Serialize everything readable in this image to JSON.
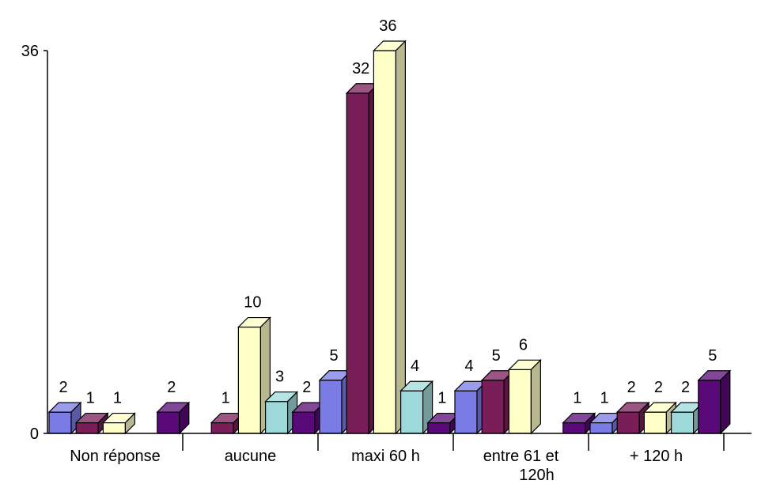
{
  "chart_data": {
    "type": "bar",
    "style": "3d-clustered",
    "categories": [
      "Non réponse",
      "aucune",
      "maxi 60 h",
      "entre 61 et\n120h",
      "+ 120 h"
    ],
    "series": [
      {
        "values": [
          2,
          null,
          5,
          4,
          1
        ],
        "color": "#7B7BE6"
      },
      {
        "values": [
          1,
          1,
          32,
          5,
          2
        ],
        "color": "#7A1E5A"
      },
      {
        "values": [
          1,
          10,
          36,
          6,
          2
        ],
        "color": "#FFFFC8"
      },
      {
        "values": [
          null,
          3,
          4,
          null,
          2
        ],
        "color": "#9ED9D9"
      },
      {
        "values": [
          2,
          2,
          1,
          1,
          5
        ],
        "color": "#5A0A78"
      }
    ],
    "ylim": [
      0,
      36
    ],
    "yticks": [
      0,
      36
    ],
    "data_labels": true,
    "legend": "none",
    "grid": false
  }
}
